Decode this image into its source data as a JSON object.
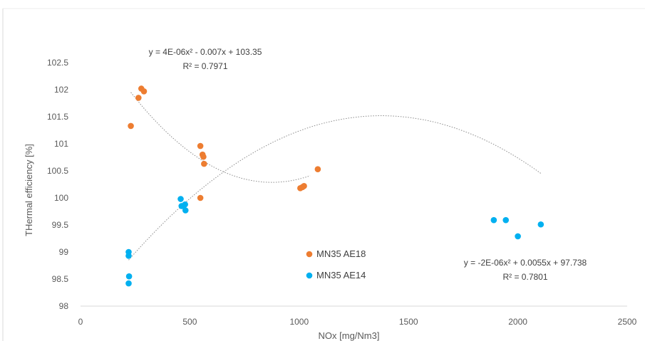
{
  "chart_data": {
    "type": "scatter",
    "xlabel": "NOx [mg/Nm3]",
    "ylabel": "THermal efficiency [%]",
    "xlim": [
      0,
      2500
    ],
    "ylim": [
      98,
      102.5
    ],
    "x_ticks": [
      "0",
      "500",
      "1000",
      "1500",
      "2000",
      "2500"
    ],
    "y_ticks": [
      "98",
      "98.5",
      "99",
      "99.5",
      "100",
      "100.5",
      "101",
      "101.5",
      "102",
      "102.5"
    ],
    "grid": false,
    "legend_position": "center",
    "series": [
      {
        "name": "MN35 AE18",
        "color": "#ED7D31",
        "points": [
          {
            "x": 230,
            "y": 101.33
          },
          {
            "x": 265,
            "y": 101.85
          },
          {
            "x": 278,
            "y": 102.02
          },
          {
            "x": 290,
            "y": 101.97
          },
          {
            "x": 548,
            "y": 100.96
          },
          {
            "x": 558,
            "y": 100.8
          },
          {
            "x": 562,
            "y": 100.76
          },
          {
            "x": 565,
            "y": 100.63
          },
          {
            "x": 548,
            "y": 100.0
          },
          {
            "x": 1005,
            "y": 100.18
          },
          {
            "x": 1015,
            "y": 100.2
          },
          {
            "x": 1022,
            "y": 100.22
          },
          {
            "x": 1085,
            "y": 100.53
          }
        ],
        "trendline": {
          "type": "poly2",
          "coefficients": {
            "a": 4e-06,
            "b": -0.007,
            "c": 103.35
          },
          "x_range": [
            230,
            1050
          ],
          "equation": "y = 4E-06x² - 0.007x + 103.35",
          "r_squared": "R² = 0.7971"
        }
      },
      {
        "name": "MN35 AE14",
        "color": "#00B0F0",
        "points": [
          {
            "x": 220,
            "y": 99.0
          },
          {
            "x": 220,
            "y": 98.93
          },
          {
            "x": 222,
            "y": 98.55
          },
          {
            "x": 220,
            "y": 98.42
          },
          {
            "x": 458,
            "y": 99.98
          },
          {
            "x": 462,
            "y": 99.85
          },
          {
            "x": 470,
            "y": 99.85
          },
          {
            "x": 478,
            "y": 99.88
          },
          {
            "x": 480,
            "y": 99.77
          },
          {
            "x": 1890,
            "y": 99.59
          },
          {
            "x": 1945,
            "y": 99.59
          },
          {
            "x": 2000,
            "y": 99.29
          },
          {
            "x": 2105,
            "y": 99.51
          }
        ],
        "trendline": {
          "type": "poly2",
          "coefficients": {
            "a": -2e-06,
            "b": 0.0055,
            "c": 97.738
          },
          "x_range": [
            220,
            2105
          ],
          "equation": "y = -2E-06x² + 0.0055x + 97.738",
          "r_squared": "R² = 0.7801"
        }
      }
    ]
  }
}
